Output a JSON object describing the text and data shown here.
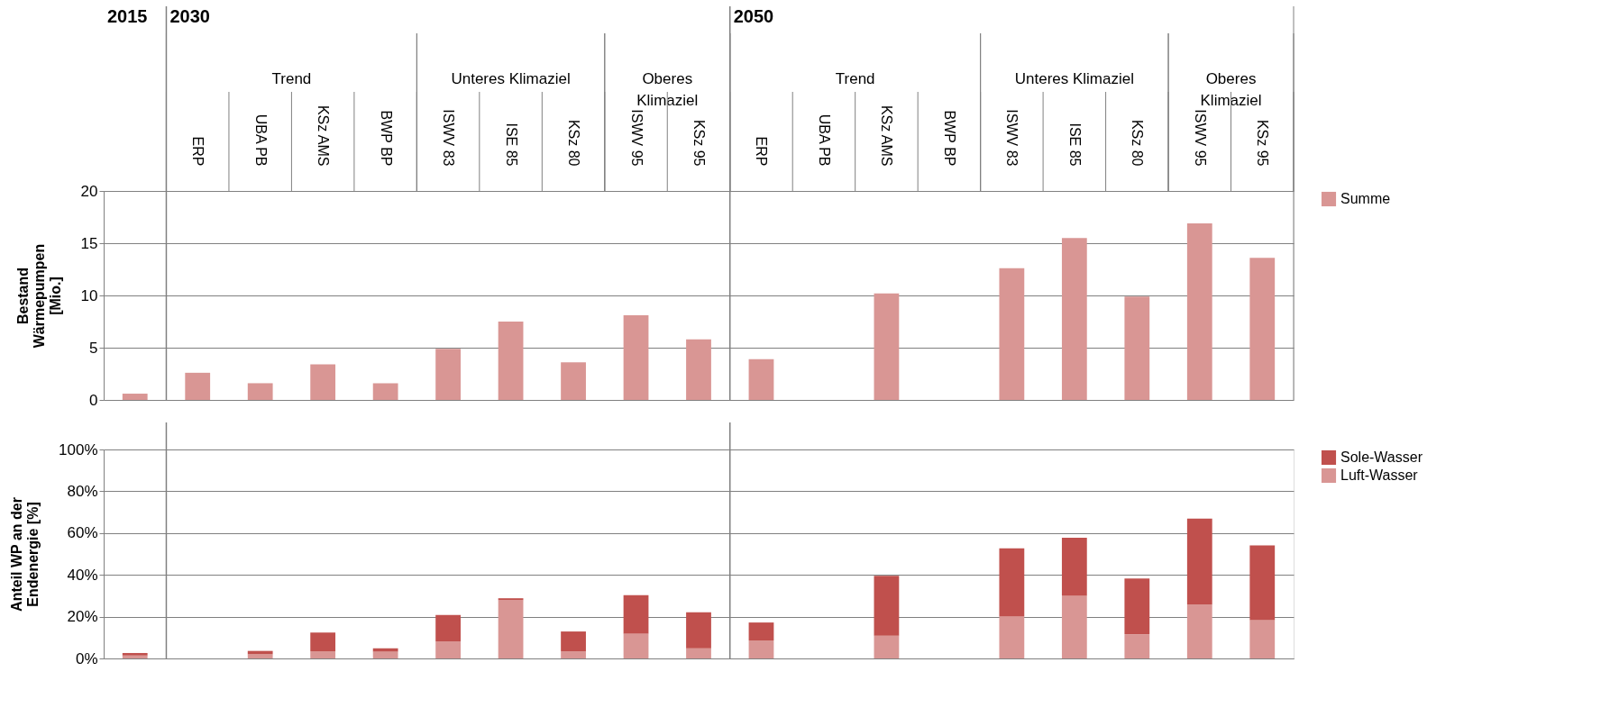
{
  "chart_data": [
    {
      "type": "bar",
      "ylabel": "Bestand Wärmepumpen [Mio.]",
      "categories": [
        null,
        "ERP",
        "UBA PB",
        "KSz AMS",
        "BWP BP",
        "ISWV 83",
        "ISE 85",
        "KSz 80",
        "ISWV 95",
        "KSz 95",
        "ERP",
        "UBA PB",
        "KSz AMS",
        "BWP BP",
        "ISWV 83",
        "ISE 85",
        "KSz 80",
        "ISWV 95",
        "KSz 95"
      ],
      "series": [
        {
          "name": "Summe",
          "color": "#d99694",
          "values": [
            0.6,
            2.6,
            1.6,
            3.4,
            1.6,
            4.9,
            7.5,
            3.6,
            8.1,
            5.8,
            3.9,
            null,
            10.2,
            null,
            12.6,
            15.5,
            9.9,
            16.9,
            13.6
          ]
        }
      ],
      "ylim": [
        0,
        20
      ],
      "yticks": [
        0,
        5,
        10,
        15,
        20
      ],
      "grid": "y",
      "legend": "top right",
      "annotations": [
        "2015",
        "2030",
        "2050",
        "Trend",
        "Unteres Klimaziel",
        "Oberes Klimaziel",
        "Trend",
        "Unteres Klimaziel",
        "Oberes Klimaziel"
      ]
    },
    {
      "type": "bar",
      "stacked": true,
      "ylabel": "Anteil WP an der Endenergie [%]",
      "tick_labels": "y",
      "categories": [
        null,
        null,
        null,
        null,
        null,
        null,
        null,
        null,
        null,
        null,
        null,
        null,
        null,
        null,
        null,
        null,
        null,
        null,
        null
      ],
      "series": [
        {
          "name": "Luft-Wasser",
          "color": "#d99694",
          "values": [
            1.4,
            null,
            2.0,
            3.4,
            3.2,
            8.2,
            27.9,
            3.4,
            11.9,
            4.9,
            8.6,
            null,
            10.9,
            null,
            20.0,
            30.0,
            11.6,
            25.8,
            18.3
          ]
        },
        {
          "name": "Sole-Wasser",
          "color": "#c0504d",
          "values": [
            1.2,
            null,
            1.6,
            9.0,
            1.6,
            12.6,
            0.9,
            9.5,
            18.4,
            17.2,
            8.6,
            null,
            28.6,
            null,
            32.7,
            27.8,
            26.7,
            41.1,
            35.8
          ]
        }
      ],
      "ylim": [
        0,
        100
      ],
      "yticks": [
        {
          "value": 0,
          "label": "0%"
        },
        {
          "value": 20,
          "label": "20%"
        },
        {
          "value": 40,
          "label": "40%"
        },
        {
          "value": 60,
          "label": "60%"
        },
        {
          "value": 80,
          "label": "80%"
        },
        {
          "value": 100,
          "label": "100%"
        }
      ],
      "grid": "y",
      "legend": "right"
    }
  ]
}
